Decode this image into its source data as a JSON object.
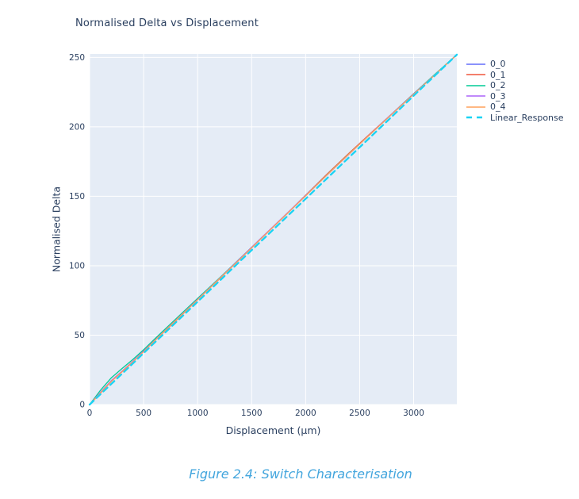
{
  "page": {
    "background": "#ffffff"
  },
  "chart_data": {
    "type": "line",
    "title": "Normalised Delta vs Displacement",
    "xlabel": "Displacement (μm)",
    "ylabel": "Normalised Delta",
    "xlim": [
      0,
      3400
    ],
    "ylim": [
      0,
      252.5
    ],
    "xticks": [
      0,
      500,
      1000,
      1500,
      2000,
      2500,
      3000
    ],
    "yticks": [
      0,
      50,
      100,
      150,
      200,
      250
    ],
    "grid": true,
    "legend_position": "right",
    "plot_bg_color": "#e5ecf6",
    "grid_color": "#ffffff",
    "text_color": "#2a3f5f",
    "x": [
      0,
      100,
      200,
      300,
      400,
      500,
      600,
      800,
      1000,
      1200,
      1400,
      1600,
      1800,
      2000,
      2200,
      2400,
      2600,
      2800,
      3000,
      3200,
      3400
    ],
    "series": [
      {
        "name": "0_0",
        "color": "#636efa",
        "dash": "solid",
        "values": [
          0,
          8.7,
          17.0,
          24.0,
          31.0,
          38.3,
          46.0,
          60.7,
          75.6,
          90.5,
          105.3,
          120.5,
          135.4,
          150.4,
          165.6,
          180.4,
          194.9,
          209.3,
          223.6,
          237.8,
          252
        ]
      },
      {
        "name": "0_1",
        "color": "#ef553b",
        "dash": "solid",
        "values": [
          0,
          8.3,
          16.6,
          23.6,
          30.7,
          38.6,
          45.9,
          60.5,
          75.7,
          90.4,
          105.7,
          120.6,
          135.5,
          150.8,
          166.1,
          180.9,
          195.3,
          209.5,
          223.8,
          237.8,
          252
        ]
      },
      {
        "name": "0_2",
        "color": "#00cc96",
        "dash": "solid",
        "values": [
          0,
          10.3,
          19.2,
          26.0,
          32.5,
          39.5,
          47.1,
          61.8,
          76.5,
          91.0,
          105.8,
          120.7,
          135.4,
          150.6,
          165.6,
          180.4,
          194.8,
          209.5,
          223.9,
          238.1,
          252
        ]
      },
      {
        "name": "0_3",
        "color": "#ab63fa",
        "dash": "solid",
        "values": [
          0,
          8.8,
          17.2,
          24.1,
          31.2,
          38.5,
          46.1,
          60.9,
          75.8,
          90.6,
          105.6,
          120.8,
          135.7,
          150.6,
          165.5,
          180.2,
          195.0,
          209.4,
          223.7,
          237.7,
          252
        ]
      },
      {
        "name": "0_4",
        "color": "#ffa15a",
        "dash": "solid",
        "values": [
          0,
          8.4,
          16.7,
          23.7,
          30.8,
          38.1,
          45.9,
          60.8,
          75.5,
          90.5,
          105.3,
          120.5,
          135.4,
          150.3,
          165.5,
          180.3,
          194.8,
          209.2,
          223.5,
          237.7,
          252
        ]
      },
      {
        "name": "Linear_Response",
        "color": "#19d3f3",
        "dash": "dash",
        "values": [
          0,
          7.4,
          14.8,
          22.2,
          29.6,
          37.1,
          44.5,
          59.3,
          74.1,
          88.9,
          103.8,
          118.6,
          133.4,
          148.2,
          163.1,
          177.9,
          192.7,
          207.5,
          222.4,
          237.2,
          252
        ]
      }
    ]
  },
  "caption": {
    "text": "Figure 2.4: Switch Characterisation",
    "color": "#42a5dd"
  }
}
